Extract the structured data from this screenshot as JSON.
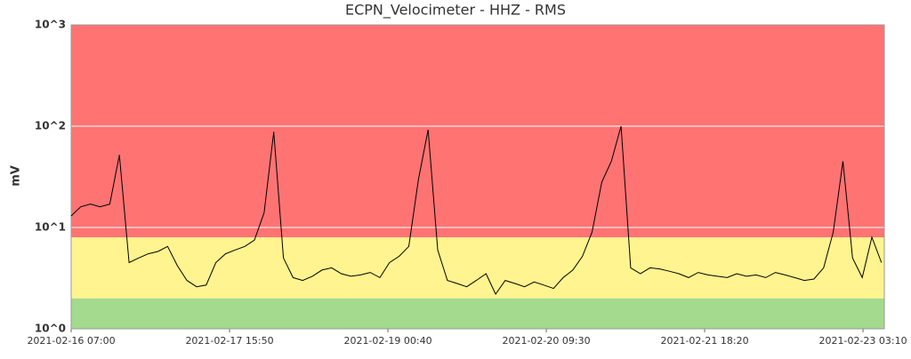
{
  "chart_data": {
    "type": "line",
    "title": "ECPN_Velocimeter - HHZ - RMS",
    "ylabel": "mV",
    "log_y": true,
    "grid": true,
    "grid_color": "#ffffff",
    "ylim": [
      1,
      1000
    ],
    "yticks": [
      {
        "value": 1,
        "label": "10^0"
      },
      {
        "value": 10,
        "label": "10^1"
      },
      {
        "value": 100,
        "label": "10^2"
      },
      {
        "value": 1000,
        "label": "10^3"
      }
    ],
    "xlim": [
      "2021-02-16 07:00",
      "2021-02-23 07:35"
    ],
    "xticks": [
      "2021-02-16 07:00",
      "2021-02-17 15:50",
      "2021-02-19 00:40",
      "2021-02-20 09:30",
      "2021-02-21 18:20",
      "2021-02-23 03:10"
    ],
    "bands": [
      {
        "from": 1,
        "to": 2,
        "color": "#a3da8d"
      },
      {
        "from": 2,
        "to": 8,
        "color": "#fff48f"
      },
      {
        "from": 8,
        "to": 1000,
        "color": "#ff7373"
      }
    ],
    "x": [
      "2021-02-16 07:00",
      "2021-02-16 09:00",
      "2021-02-16 11:00",
      "2021-02-16 13:00",
      "2021-02-16 15:00",
      "2021-02-16 17:00",
      "2021-02-16 19:00",
      "2021-02-16 21:00",
      "2021-02-16 23:00",
      "2021-02-17 01:00",
      "2021-02-17 03:00",
      "2021-02-17 05:00",
      "2021-02-17 07:00",
      "2021-02-17 09:00",
      "2021-02-17 11:00",
      "2021-02-17 13:00",
      "2021-02-17 15:00",
      "2021-02-17 17:00",
      "2021-02-17 19:00",
      "2021-02-17 21:00",
      "2021-02-17 23:00",
      "2021-02-18 01:00",
      "2021-02-18 03:00",
      "2021-02-18 05:00",
      "2021-02-18 07:00",
      "2021-02-18 09:00",
      "2021-02-18 11:00",
      "2021-02-18 13:00",
      "2021-02-18 15:00",
      "2021-02-18 17:00",
      "2021-02-18 19:00",
      "2021-02-18 21:00",
      "2021-02-18 23:00",
      "2021-02-19 01:00",
      "2021-02-19 03:00",
      "2021-02-19 05:00",
      "2021-02-19 07:00",
      "2021-02-19 09:00",
      "2021-02-19 11:00",
      "2021-02-19 13:00",
      "2021-02-19 15:00",
      "2021-02-19 17:00",
      "2021-02-19 19:00",
      "2021-02-19 21:00",
      "2021-02-19 23:00",
      "2021-02-20 01:00",
      "2021-02-20 03:00",
      "2021-02-20 05:00",
      "2021-02-20 07:00",
      "2021-02-20 09:00",
      "2021-02-20 11:00",
      "2021-02-20 13:00",
      "2021-02-20 15:00",
      "2021-02-20 17:00",
      "2021-02-20 19:00",
      "2021-02-20 21:00",
      "2021-02-20 23:00",
      "2021-02-21 01:00",
      "2021-02-21 03:00",
      "2021-02-21 05:00",
      "2021-02-21 07:00",
      "2021-02-21 09:00",
      "2021-02-21 11:00",
      "2021-02-21 13:00",
      "2021-02-21 15:00",
      "2021-02-21 17:00",
      "2021-02-21 19:00",
      "2021-02-21 21:00",
      "2021-02-21 23:00",
      "2021-02-22 01:00",
      "2021-02-22 03:00",
      "2021-02-22 05:00",
      "2021-02-22 07:00",
      "2021-02-22 09:00",
      "2021-02-22 11:00",
      "2021-02-22 13:00",
      "2021-02-22 15:00",
      "2021-02-22 17:00",
      "2021-02-22 19:00",
      "2021-02-22 21:00",
      "2021-02-22 23:00",
      "2021-02-23 01:00",
      "2021-02-23 03:00",
      "2021-02-23 05:00",
      "2021-02-23 07:00"
    ],
    "series": [
      {
        "color": "#000000",
        "values": [
          13,
          16,
          17,
          16,
          17,
          52,
          4.5,
          5,
          5.5,
          5.8,
          6.5,
          4.2,
          3,
          2.6,
          2.7,
          4.5,
          5.5,
          6,
          6.5,
          7.5,
          14,
          88,
          5,
          3.2,
          3,
          3.3,
          3.8,
          4,
          3.5,
          3.3,
          3.4,
          3.6,
          3.2,
          4.5,
          5.2,
          6.5,
          30,
          92,
          6,
          3,
          2.8,
          2.6,
          3,
          3.5,
          2.2,
          3,
          2.8,
          2.6,
          2.9,
          2.7,
          2.5,
          3.2,
          3.8,
          5.2,
          9,
          28,
          45,
          100,
          4,
          3.5,
          4,
          3.9,
          3.7,
          3.5,
          3.2,
          3.6,
          3.4,
          3.3,
          3.2,
          3.5,
          3.3,
          3.4,
          3.2,
          3.6,
          3.4,
          3.2,
          3,
          3.1,
          4,
          9,
          45,
          5,
          3.2,
          8,
          4.5
        ]
      }
    ]
  }
}
